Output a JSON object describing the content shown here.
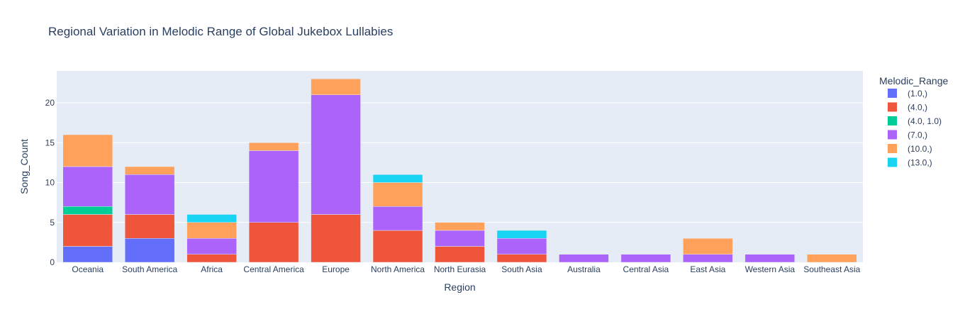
{
  "chart_data": {
    "type": "bar",
    "stacked": true,
    "title": "Regional Variation in Melodic Range of Global Jukebox Lullabies",
    "xlabel": "Region",
    "ylabel": "Song_Count",
    "ylim": [
      0,
      24
    ],
    "yticks": [
      0,
      5,
      10,
      15,
      20
    ],
    "grid": true,
    "legend_title": "Melodic_Range",
    "legend_position": "right",
    "categories": [
      "Oceania",
      "South America",
      "Africa",
      "Central America",
      "Europe",
      "North America",
      "North Eurasia",
      "South Asia",
      "Australia",
      "Central Asia",
      "East Asia",
      "Western Asia",
      "Southeast Asia"
    ],
    "series": [
      {
        "name": "(1.0,)",
        "color": "#636efa",
        "values": [
          2,
          3,
          0,
          0,
          0,
          0,
          0,
          0,
          0,
          0,
          0,
          0,
          0
        ]
      },
      {
        "name": "(4.0,)",
        "color": "#ef553b",
        "values": [
          4,
          3,
          1,
          5,
          6,
          4,
          2,
          1,
          0,
          0,
          0,
          0,
          0
        ]
      },
      {
        "name": "(4.0, 1.0)",
        "color": "#00cc96",
        "values": [
          1,
          0,
          0,
          0,
          0,
          0,
          0,
          0,
          0,
          0,
          0,
          0,
          0
        ]
      },
      {
        "name": "(7.0,)",
        "color": "#ab63fa",
        "values": [
          5,
          5,
          2,
          9,
          15,
          3,
          2,
          2,
          1,
          1,
          1,
          1,
          0
        ]
      },
      {
        "name": "(10.0,)",
        "color": "#ffa15a",
        "values": [
          4,
          1,
          2,
          1,
          2,
          3,
          1,
          0,
          0,
          0,
          2,
          0,
          1
        ]
      },
      {
        "name": "(13.0,)",
        "color": "#19d3f3",
        "values": [
          0,
          0,
          1,
          0,
          0,
          1,
          0,
          1,
          0,
          0,
          0,
          0,
          0
        ]
      }
    ]
  }
}
